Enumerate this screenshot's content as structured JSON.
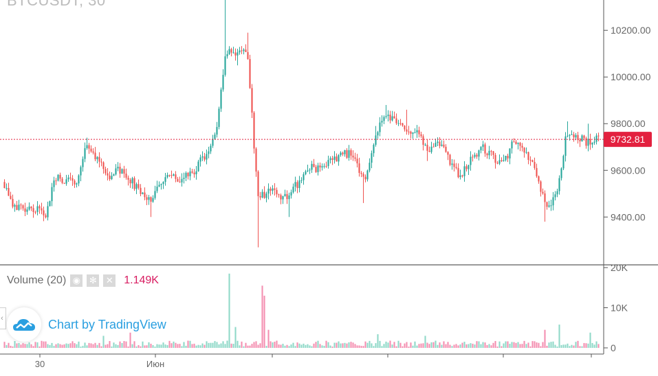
{
  "chart_title": "BTCUSDT, 30",
  "title_buttons": [
    "hide-icon",
    "settings-icon"
  ],
  "colors": {
    "up": "#26a69a",
    "down": "#ef5350",
    "up_volume": "#8fd9c8",
    "down_volume": "#f48fb1",
    "last_price": "#e3213f",
    "axis": "#555555"
  },
  "price_label": "9732.81",
  "volume_legend": {
    "label": "Volume (20)",
    "value": "1.149K",
    "buttons": [
      "eye-icon",
      "gear-icon",
      "close-icon"
    ]
  },
  "watermark": {
    "text": "Chart by TradingView"
  },
  "chart_data": {
    "type": "candlestick",
    "price_axis": {
      "ticks": [
        "10200.00",
        "10000.00",
        "9800.00",
        "9600.00",
        "9400.00"
      ],
      "ylim": [
        9195,
        10330
      ]
    },
    "volume_axis": {
      "ticks": [
        "20K",
        "10K",
        "0"
      ],
      "ylim": [
        0,
        20000
      ]
    },
    "x_axis": {
      "ticks": [
        "30",
        "Июн",
        "",
        "",
        "",
        ""
      ]
    },
    "last_price": 9732.81,
    "segments": [
      {
        "price": 9560,
        "spikes": []
      },
      {
        "price": 9460,
        "spikes": []
      },
      {
        "price": 9420,
        "spikes": []
      },
      {
        "price": 9440,
        "spikes": []
      },
      {
        "price": 9400,
        "spikes": []
      },
      {
        "price": 9570,
        "spikes": []
      },
      {
        "price": 9560,
        "spikes": []
      },
      {
        "price": 9540,
        "spikes": []
      },
      {
        "price": 9720,
        "spikes": [
          9740
        ]
      },
      {
        "price": 9640,
        "spikes": []
      },
      {
        "price": 9580,
        "spikes": []
      },
      {
        "price": 9600,
        "spikes": []
      },
      {
        "price": 9560,
        "spikes": []
      },
      {
        "price": 9500,
        "spikes": []
      },
      {
        "price": 9480,
        "spikes": [
          9400
        ]
      },
      {
        "price": 9560,
        "spikes": []
      },
      {
        "price": 9570,
        "spikes": []
      },
      {
        "price": 9560,
        "spikes": []
      },
      {
        "price": 9600,
        "spikes": []
      },
      {
        "price": 9660,
        "spikes": []
      },
      {
        "price": 9740,
        "spikes": []
      },
      {
        "price": 10120,
        "spikes": [
          10330,
          10230
        ]
      },
      {
        "price": 10100,
        "spikes": [
          10050
        ]
      },
      {
        "price": 10120,
        "spikes": [
          10190
        ]
      },
      {
        "price": 9470,
        "spikes": [
          9270
        ]
      },
      {
        "price": 9520,
        "spikes": []
      },
      {
        "price": 9480,
        "spikes": []
      },
      {
        "price": 9500,
        "spikes": [
          9400
        ]
      },
      {
        "price": 9560,
        "spikes": []
      },
      {
        "price": 9620,
        "spikes": []
      },
      {
        "price": 9600,
        "spikes": []
      },
      {
        "price": 9640,
        "spikes": []
      },
      {
        "price": 9680,
        "spikes": []
      },
      {
        "price": 9660,
        "spikes": []
      },
      {
        "price": 9560,
        "spikes": [
          9460
        ]
      },
      {
        "price": 9740,
        "spikes": [
          9790
        ]
      },
      {
        "price": 9840,
        "spikes": [
          9880
        ]
      },
      {
        "price": 9800,
        "spikes": []
      },
      {
        "price": 9780,
        "spikes": [
          9860
        ]
      },
      {
        "price": 9760,
        "spikes": []
      },
      {
        "price": 9680,
        "spikes": [
          9640
        ]
      },
      {
        "price": 9720,
        "spikes": []
      },
      {
        "price": 9640,
        "spikes": []
      },
      {
        "price": 9580,
        "spikes": []
      },
      {
        "price": 9640,
        "spikes": []
      },
      {
        "price": 9700,
        "spikes": []
      },
      {
        "price": 9660,
        "spikes": []
      },
      {
        "price": 9620,
        "spikes": []
      },
      {
        "price": 9720,
        "spikes": []
      },
      {
        "price": 9680,
        "spikes": []
      },
      {
        "price": 9620,
        "spikes": []
      },
      {
        "price": 9450,
        "spikes": [
          9380
        ]
      },
      {
        "price": 9480,
        "spikes": []
      },
      {
        "price": 9760,
        "spikes": [
          9810
        ]
      },
      {
        "price": 9740,
        "spikes": []
      },
      {
        "price": 9720,
        "spikes": [
          9800
        ]
      },
      {
        "price": 9735,
        "spikes": []
      }
    ],
    "volume_spikes": [
      {
        "at": 0.38,
        "value": 18500,
        "dir": "up"
      },
      {
        "at": 0.39,
        "value": 5200,
        "dir": "up"
      },
      {
        "at": 0.435,
        "value": 15500,
        "dir": "down"
      },
      {
        "at": 0.44,
        "value": 13000,
        "dir": "down"
      },
      {
        "at": 0.445,
        "value": 4500,
        "dir": "down"
      },
      {
        "at": 0.215,
        "value": 3800,
        "dir": "down"
      },
      {
        "at": 0.17,
        "value": 3000,
        "dir": "up"
      },
      {
        "at": 0.63,
        "value": 3400,
        "dir": "up"
      },
      {
        "at": 0.71,
        "value": 3000,
        "dir": "up"
      },
      {
        "at": 0.91,
        "value": 4500,
        "dir": "down"
      },
      {
        "at": 0.935,
        "value": 5800,
        "dir": "up"
      },
      {
        "at": 0.985,
        "value": 3800,
        "dir": "up"
      }
    ]
  }
}
